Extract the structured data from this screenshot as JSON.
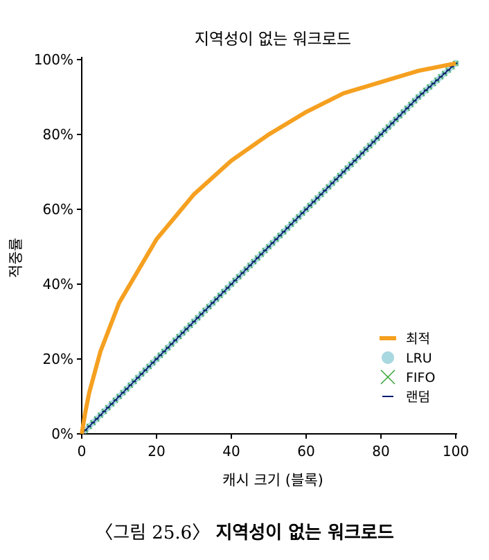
{
  "chart_data": {
    "type": "line",
    "title": "지역성이 없는 워크로드",
    "xlabel": "캐시 크기 (블록)",
    "ylabel": "적중률",
    "xlim": [
      0,
      100
    ],
    "ylim": [
      0,
      100
    ],
    "x_ticks": [
      "0",
      "20",
      "40",
      "60",
      "80",
      "100"
    ],
    "y_ticks": [
      "0%",
      "20%",
      "40%",
      "60%",
      "80%",
      "100%"
    ],
    "x": [
      0,
      1,
      2,
      5,
      10,
      20,
      30,
      40,
      50,
      60,
      70,
      80,
      90,
      100
    ],
    "series": [
      {
        "name": "최적",
        "color": "#f5a020",
        "style": "thick-line",
        "values": [
          0,
          6,
          11,
          22,
          35,
          52,
          64,
          73,
          80,
          86,
          91,
          94,
          97,
          99
        ]
      },
      {
        "name": "LRU",
        "color": "#a8d8e0",
        "style": "dots",
        "values": [
          0,
          1,
          2,
          5,
          10,
          20,
          30,
          40,
          50,
          60,
          70,
          80,
          90,
          99
        ]
      },
      {
        "name": "FIFO",
        "color": "#2ca02c",
        "style": "x-markers",
        "values": [
          0,
          1,
          2,
          5,
          10,
          20,
          30,
          40,
          50,
          60,
          70,
          80,
          90,
          99
        ]
      },
      {
        "name": "랜덤",
        "color": "#0a1a70",
        "style": "thin-line",
        "values": [
          0,
          1,
          2,
          5,
          10,
          20,
          30,
          40,
          50,
          60,
          70,
          80,
          90,
          99
        ]
      }
    ],
    "legend_position": "bottom-right",
    "grid": false
  },
  "caption": {
    "prefix": "〈그림 25.6〉",
    "text": "지역성이 없는 워크로드"
  }
}
